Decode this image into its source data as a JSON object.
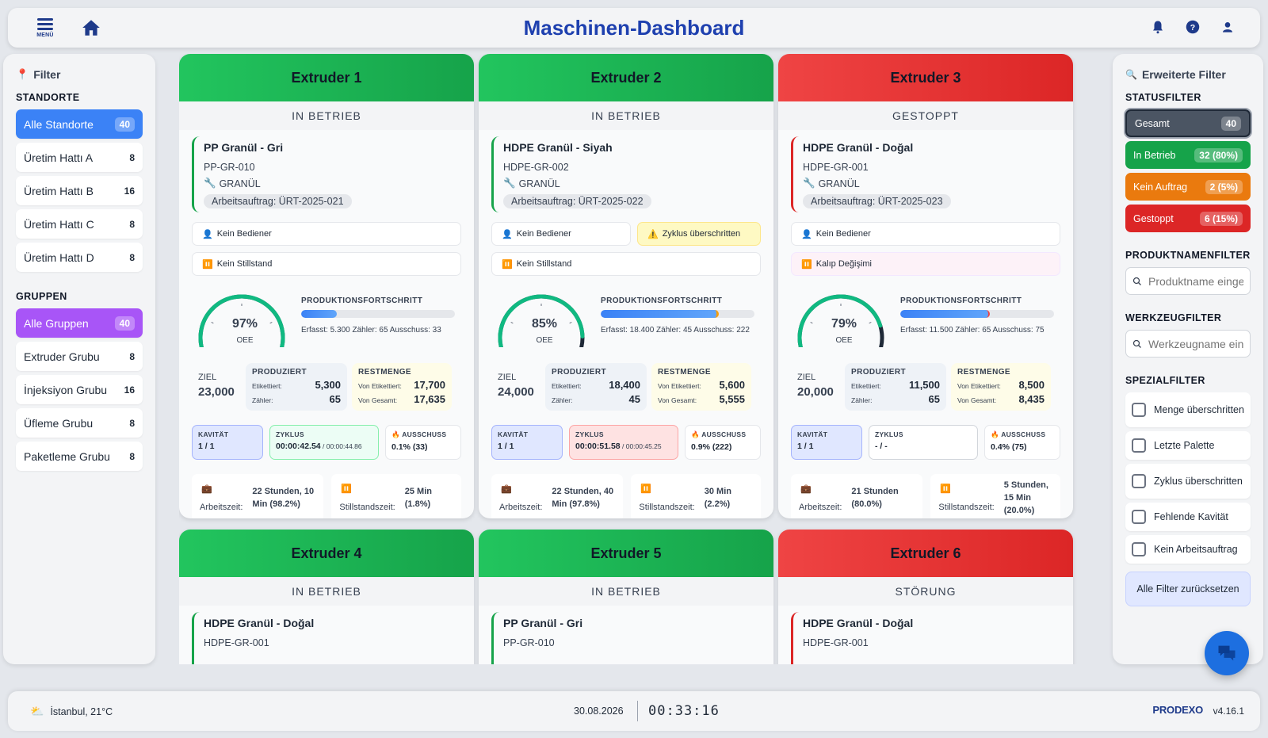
{
  "header": {
    "menu_label": "MENÜ",
    "title": "Maschinen-Dashboard",
    "icons": [
      "menu-icon",
      "home-icon",
      "bell-icon",
      "help-icon",
      "user-icon"
    ]
  },
  "left_sidebar": {
    "title": "Filter",
    "locations_title": "STANDORTE",
    "locations": [
      {
        "label": "Alle Standorte",
        "count": "40",
        "active": true
      },
      {
        "label": "Üretim Hattı A",
        "count": "8"
      },
      {
        "label": "Üretim Hattı B",
        "count": "16"
      },
      {
        "label": "Üretim Hattı C",
        "count": "8"
      },
      {
        "label": "Üretim Hattı D",
        "count": "8"
      }
    ],
    "groups_title": "GRUPPEN",
    "groups": [
      {
        "label": "Alle Gruppen",
        "count": "40",
        "active": true
      },
      {
        "label": "Extruder Grubu",
        "count": "8"
      },
      {
        "label": "İnjeksiyon Grubu",
        "count": "16"
      },
      {
        "label": "Üfleme Grubu",
        "count": "8"
      },
      {
        "label": "Paketleme Grubu",
        "count": "8"
      }
    ]
  },
  "right_sidebar": {
    "title": "Erweiterte Filter",
    "status_title": "STATUSFILTER",
    "status": [
      {
        "label": "Gesamt",
        "count": "40"
      },
      {
        "label": "In Betrieb",
        "count": "32 (80%)"
      },
      {
        "label": "Kein Auftrag",
        "count": "2 (5%)"
      },
      {
        "label": "Gestoppt",
        "count": "6 (15%)"
      }
    ],
    "product_title": "PRODUKTNAMENFILTER",
    "product_placeholder": "Produktname eingeben",
    "tool_title": "WERKZEUGFILTER",
    "tool_placeholder": "Werkzeugname eingeben",
    "special_title": "SPEZIALFILTER",
    "special": [
      "Menge überschritten",
      "Letzte Palette",
      "Zyklus überschritten",
      "Fehlende Kavität",
      "Kein Arbeitsauftrag"
    ],
    "reset_label": "Alle Filter zurücksetzen"
  },
  "machines": [
    {
      "name": "Extruder 1",
      "status": "IN BETRIEB",
      "color": "#16a34a",
      "product": "PP Granül - Gri",
      "code": "PP-GR-010",
      "type": "GRANÜL",
      "order": "Arbeitsauftrag: ÜRT-2025-021",
      "operator": "Kein Bediener",
      "warning": "",
      "downtime": "Kein Stillstand",
      "oee": 97,
      "oee_label": "97%",
      "oee_caption": "OEE",
      "progress_title": "PRODUKTIONSFORTSCHRITT",
      "progress": 0.23,
      "progress_meta": "Erfasst: 5.300   Zähler: 65   Ausschuss: 33",
      "ziel_label": "ZIEL",
      "ziel": "23,000",
      "prod_label": "PRODUZIERT",
      "prod_tag_label": "Etikettiert:",
      "prod_tag": "5,300",
      "prod_cnt_label": "Zähler:",
      "prod_cnt": "65",
      "rest_label": "RESTMENGE",
      "rest_tag_label": "Von Etikettiert:",
      "rest_tag": "17,700",
      "rest_total_label": "Von Gesamt:",
      "rest_total": "17,635",
      "kav_label": "KAVITÄT",
      "kav": "1 / 1",
      "zyk_label": "ZYKLUS",
      "zyk": "00:00:42.54",
      "zyk_ref": " / 00:00:44.86",
      "zyk_state": "green",
      "aus_label": "AUSSCHUSS",
      "aus": "0.1% (33)",
      "work_label": "Arbeitszeit:",
      "work": "22 Stunden, 10 Min (98.2%)",
      "stop_label": "Stillstandszeit:",
      "stop": "25 Min (1.8%)"
    },
    {
      "name": "Extruder 2",
      "status": "IN BETRIEB",
      "color": "#16a34a",
      "product": "HDPE Granül - Siyah",
      "code": "HDPE-GR-002",
      "type": "GRANÜL",
      "order": "Arbeitsauftrag: ÜRT-2025-022",
      "operator": "Kein Bediener",
      "warning": "Zyklus überschritten",
      "downtime": "Kein Stillstand",
      "oee": 85,
      "oee_label": "85%",
      "oee_caption": "OEE",
      "progress_title": "PRODUKTIONSFORTSCHRITT",
      "progress": 0.77,
      "progress_meta": "Erfasst: 18.400  Zähler: 45  Ausschuss: 222",
      "ziel_label": "ZIEL",
      "ziel": "24,000",
      "prod_label": "PRODUZIERT",
      "prod_tag_label": "Etikettiert:",
      "prod_tag": "18,400",
      "prod_cnt_label": "Zähler:",
      "prod_cnt": "45",
      "rest_label": "RESTMENGE",
      "rest_tag_label": "Von Etikettiert:",
      "rest_tag": "5,600",
      "rest_total_label": "Von Gesamt:",
      "rest_total": "5,555",
      "kav_label": "KAVITÄT",
      "kav": "1 / 1",
      "zyk_label": "ZYKLUS",
      "zyk": "00:00:51.58",
      "zyk_ref": " / 00:00:45.25",
      "zyk_state": "red",
      "aus_label": "AUSSCHUSS",
      "aus": "0.9% (222)",
      "work_label": "Arbeitszeit:",
      "work": "22 Stunden, 40 Min (97.8%)",
      "stop_label": "Stillstandszeit:",
      "stop": "30 Min (2.2%)"
    },
    {
      "name": "Extruder 3",
      "status": "GESTOPPT",
      "color": "#dc2626",
      "product": "HDPE Granül - Doğal",
      "code": "HDPE-GR-001",
      "type": "GRANÜL",
      "order": "Arbeitsauftrag: ÜRT-2025-023",
      "operator": "Kein Bediener",
      "warning": "",
      "downtime": "Kalıp Değişimi",
      "oee": 79,
      "oee_label": "79%",
      "oee_caption": "OEE",
      "progress_title": "PRODUKTIONSFORTSCHRITT",
      "progress": 0.58,
      "progress_meta": "Erfasst: 11.500   Zähler: 65   Ausschuss: 75",
      "ziel_label": "ZIEL",
      "ziel": "20,000",
      "prod_label": "PRODUZIERT",
      "prod_tag_label": "Etikettiert:",
      "prod_tag": "11,500",
      "prod_cnt_label": "Zähler:",
      "prod_cnt": "65",
      "rest_label": "RESTMENGE",
      "rest_tag_label": "Von Etikettiert:",
      "rest_tag": "8,500",
      "rest_total_label": "Von Gesamt:",
      "rest_total": "8,435",
      "kav_label": "KAVITÄT",
      "kav": "1 / 1",
      "zyk_label": "ZYKLUS",
      "zyk": "- / -",
      "zyk_ref": "",
      "zyk_state": "grey",
      "aus_label": "AUSSCHUSS",
      "aus": "0.4% (75)",
      "work_label": "Arbeitszeit:",
      "work": "21 Stunden (80.0%)",
      "stop_label": "Stillstandszeit:",
      "stop": "5 Stunden, 15 Min (20.0%)"
    },
    {
      "name": "Extruder 4",
      "status": "IN BETRIEB",
      "color": "#16a34a",
      "product": "HDPE Granül - Doğal",
      "code": "HDPE-GR-001"
    },
    {
      "name": "Extruder 5",
      "status": "IN BETRIEB",
      "color": "#16a34a",
      "product": "PP Granül - Gri",
      "code": "PP-GR-010"
    },
    {
      "name": "Extruder 6",
      "status": "STÖRUNG",
      "color": "#dc2626",
      "product": "HDPE Granül - Doğal",
      "code": "HDPE-GR-001"
    }
  ],
  "footer": {
    "weather": "İstanbul, 21°C",
    "date": "30.08.2026",
    "clock": "00:33:16",
    "brand": "PRODEXO",
    "version": "v4.16.1"
  }
}
